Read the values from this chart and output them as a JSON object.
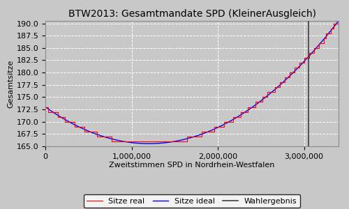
{
  "title": "BTW2013: Gesamtmandate SPD (KleinerAusgleich)",
  "xlabel": "Zweitstimmen SPD in Nordrhein-Westfalen",
  "ylabel": "Gesamtsitze",
  "ylim": [
    165.0,
    190.5
  ],
  "xlim": [
    0,
    3400000
  ],
  "wahlergebnis_x": 3054000,
  "legend_labels": [
    "Sitze real",
    "Sitze ideal",
    "Wahlergebnis"
  ],
  "legend_colors": [
    "red",
    "blue",
    "#404040"
  ],
  "background_color": "#c8c8c8",
  "plot_bg_color": "#c0c0c0",
  "title_fontsize": 10,
  "axis_fontsize": 8,
  "tick_fontsize": 8,
  "xticks": [
    0,
    1000000,
    2000000,
    3000000
  ],
  "yticks": [
    165.0,
    167.5,
    170.0,
    172.5,
    175.0,
    177.5,
    180.0,
    182.5,
    185.0,
    187.5,
    190.0
  ],
  "ideal_points_x": [
    0,
    1500000,
    3400000
  ],
  "ideal_points_y": [
    173.0,
    166.0,
    190.5
  ],
  "n_steps": 120
}
